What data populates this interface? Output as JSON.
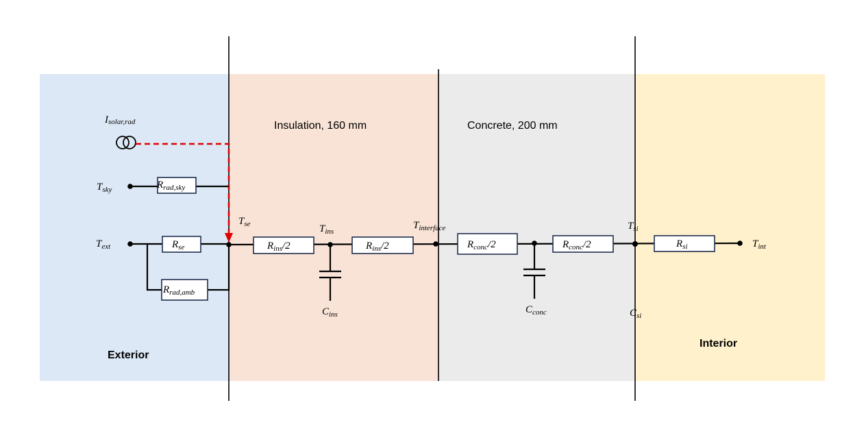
{
  "regions": {
    "exterior": {
      "label": "Exterior",
      "color": "#dce8f5"
    },
    "insulation": {
      "label": "Insulation, 160 mm",
      "color": "#f9e3d6"
    },
    "concrete": {
      "label": "Concrete, 200 mm",
      "color": "#ebebeb"
    },
    "interior": {
      "label": "Interior",
      "color": "#fff1cc"
    }
  },
  "source": {
    "symbol": "I",
    "sub": "solar,rad",
    "line_color": "#e00000"
  },
  "nodes": {
    "t_sky": {
      "symbol": "T",
      "sub": "sky"
    },
    "t_ext": {
      "symbol": "T",
      "sub": "ext"
    },
    "t_se": {
      "symbol": "T",
      "sub": "se"
    },
    "t_ins": {
      "symbol": "T",
      "sub": "ins"
    },
    "t_interface": {
      "symbol": "T",
      "sub": "interface"
    },
    "t_si": {
      "symbol": "T",
      "sub": "si"
    },
    "t_int": {
      "symbol": "T",
      "sub": "int"
    }
  },
  "resistors": {
    "r_rad_sky": {
      "symbol": "R",
      "sub": "rad,sky",
      "suffix": ""
    },
    "r_se": {
      "symbol": "R",
      "sub": "se",
      "suffix": ""
    },
    "r_rad_amb": {
      "symbol": "R",
      "sub": "rad,amb",
      "suffix": ""
    },
    "r_ins_1": {
      "symbol": "R",
      "sub": "ins",
      "suffix": "/2"
    },
    "r_ins_2": {
      "symbol": "R",
      "sub": "ins",
      "suffix": "/2"
    },
    "r_conc_1": {
      "symbol": "R",
      "sub": "conc",
      "suffix": "/2"
    },
    "r_conc_2": {
      "symbol": "R",
      "sub": "conc",
      "suffix": "/2"
    },
    "r_si": {
      "symbol": "R",
      "sub": "si",
      "suffix": ""
    }
  },
  "capacitors": {
    "c_ins": {
      "symbol": "C",
      "sub": "ins"
    },
    "c_conc": {
      "symbol": "C",
      "sub": "conc"
    },
    "c_si": {
      "symbol": "C",
      "sub": "si"
    }
  }
}
